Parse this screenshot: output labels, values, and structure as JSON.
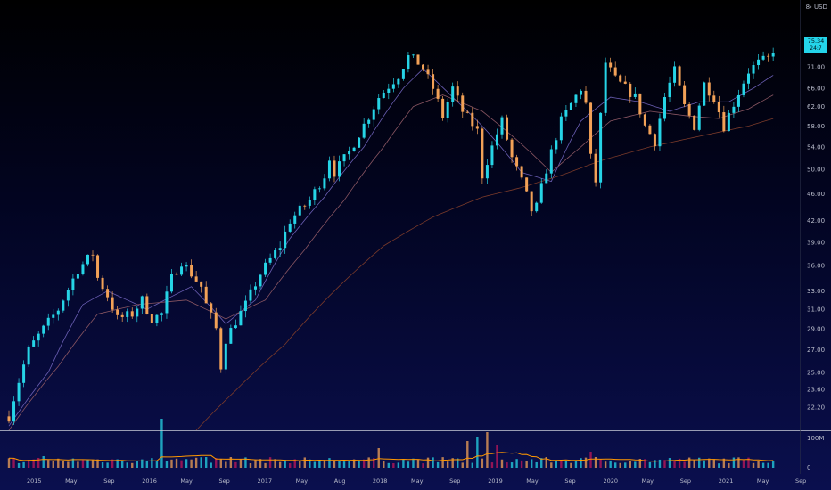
{
  "currency_label": "8› USD",
  "last_price": "75.34",
  "last_countdown": "24:7",
  "chart_data": {
    "type": "candlestick",
    "y_axis": {
      "scale": "log",
      "range": [
        20.5,
        79
      ],
      "ticks": [
        "71.00",
        "66.00",
        "62.00",
        "58.00",
        "54.00",
        "50.00",
        "46.00",
        "42.00",
        "39.00",
        "36.00",
        "33.00",
        "31.00",
        "29.00",
        "27.00",
        "25.00",
        "23.60",
        "22.20"
      ]
    },
    "x_axis": {
      "ticks": [
        "2015",
        "May",
        "Sep",
        "2016",
        "May",
        "Sep",
        "2017",
        "May",
        "Aug",
        "2018",
        "May",
        "Sep",
        "2019",
        "May",
        "Sep",
        "2020",
        "May",
        "Sep",
        "2021",
        "May",
        "Sep"
      ]
    },
    "price_path": [
      [
        0,
        21.5
      ],
      [
        4,
        27
      ],
      [
        10,
        31
      ],
      [
        14,
        35.5
      ],
      [
        17,
        37.5
      ],
      [
        18,
        34.5
      ],
      [
        20,
        32.5
      ],
      [
        22,
        30
      ],
      [
        25,
        30.5
      ],
      [
        27,
        32
      ],
      [
        29,
        30
      ],
      [
        31,
        30.5
      ],
      [
        33,
        34.5
      ],
      [
        35,
        36.5
      ],
      [
        37,
        35
      ],
      [
        39,
        33.5
      ],
      [
        40,
        31.5
      ],
      [
        42,
        29
      ],
      [
        43,
        25.5
      ],
      [
        44,
        28
      ],
      [
        48,
        31.5
      ],
      [
        51,
        35
      ],
      [
        55,
        38.5
      ],
      [
        57,
        42
      ],
      [
        61,
        45
      ],
      [
        64,
        49
      ],
      [
        65,
        52
      ],
      [
        66,
        49.5
      ],
      [
        69,
        53
      ],
      [
        73,
        60
      ],
      [
        75,
        64
      ],
      [
        79,
        69
      ],
      [
        81,
        73.5
      ],
      [
        83,
        72
      ],
      [
        84,
        70.5
      ],
      [
        86,
        66
      ],
      [
        88,
        60
      ],
      [
        90,
        66
      ],
      [
        92,
        61
      ],
      [
        95,
        57
      ],
      [
        96,
        49
      ],
      [
        98,
        54
      ],
      [
        100,
        59
      ],
      [
        102,
        52
      ],
      [
        104,
        48
      ],
      [
        106,
        43.5
      ],
      [
        107,
        44
      ],
      [
        109,
        50
      ],
      [
        112,
        59
      ],
      [
        116,
        66
      ],
      [
        117,
        62.5
      ],
      [
        118,
        52
      ],
      [
        119,
        48
      ],
      [
        121,
        72
      ],
      [
        123,
        68
      ],
      [
        125,
        66
      ],
      [
        127,
        64
      ],
      [
        129,
        58
      ],
      [
        131,
        55
      ],
      [
        133,
        64
      ],
      [
        135,
        70
      ],
      [
        137,
        62
      ],
      [
        139,
        58
      ],
      [
        141,
        67
      ],
      [
        143,
        64
      ],
      [
        145,
        58
      ],
      [
        148,
        65
      ],
      [
        150,
        70
      ],
      [
        152,
        72
      ],
      [
        154,
        73
      ],
      [
        155,
        75.3
      ]
    ],
    "moving_averages": [
      {
        "color": "#6b5fb4",
        "path": [
          [
            0,
            20.8
          ],
          [
            8,
            25
          ],
          [
            15,
            31.5
          ],
          [
            20,
            33
          ],
          [
            28,
            31
          ],
          [
            37,
            33.5
          ],
          [
            44,
            29.5
          ],
          [
            50,
            32
          ],
          [
            57,
            39.5
          ],
          [
            64,
            45.5
          ],
          [
            72,
            54
          ],
          [
            80,
            66
          ],
          [
            84,
            70.5
          ],
          [
            90,
            64
          ],
          [
            96,
            58
          ],
          [
            104,
            49.5
          ],
          [
            110,
            48
          ],
          [
            116,
            59
          ],
          [
            122,
            64
          ],
          [
            128,
            63
          ],
          [
            134,
            61
          ],
          [
            140,
            63
          ],
          [
            146,
            63
          ],
          [
            151,
            66
          ],
          [
            155,
            69
          ]
        ]
      },
      {
        "color": "#8a5662",
        "path": [
          [
            0,
            20.5
          ],
          [
            10,
            25.5
          ],
          [
            18,
            30.5
          ],
          [
            26,
            31.5
          ],
          [
            36,
            32
          ],
          [
            44,
            30
          ],
          [
            52,
            32
          ],
          [
            60,
            38
          ],
          [
            68,
            45
          ],
          [
            76,
            54
          ],
          [
            82,
            62
          ],
          [
            88,
            64.5
          ],
          [
            96,
            61
          ],
          [
            104,
            54.5
          ],
          [
            110,
            49.5
          ],
          [
            116,
            54
          ],
          [
            122,
            59
          ],
          [
            130,
            61
          ],
          [
            138,
            60
          ],
          [
            144,
            59.5
          ],
          [
            150,
            61.5
          ],
          [
            155,
            64.5
          ]
        ]
      },
      {
        "color": "#7a3a2a",
        "path": [
          [
            38,
            20.5
          ],
          [
            46,
            23.5
          ],
          [
            56,
            27.5
          ],
          [
            66,
            33
          ],
          [
            76,
            38.5
          ],
          [
            86,
            42.5
          ],
          [
            96,
            45.5
          ],
          [
            104,
            47
          ],
          [
            112,
            49
          ],
          [
            120,
            51.5
          ],
          [
            130,
            54
          ],
          [
            140,
            56
          ],
          [
            150,
            58
          ],
          [
            155,
            59.5
          ]
        ]
      }
    ],
    "volume": {
      "axis_labels": [
        "100M",
        "0"
      ],
      "baseline": 8,
      "spikes": [
        [
          7,
          13
        ],
        [
          31,
          55
        ],
        [
          45,
          12
        ],
        [
          75,
          22
        ],
        [
          93,
          30
        ],
        [
          95,
          35
        ],
        [
          97,
          40
        ],
        [
          99,
          26
        ],
        [
          118,
          18
        ],
        [
          119,
          12
        ]
      ]
    },
    "candle_colors": {
      "up": "#26d4e6",
      "down": "#f2a157",
      "volume_down": "#c2185b",
      "volume_avg": "#ff9800"
    }
  }
}
